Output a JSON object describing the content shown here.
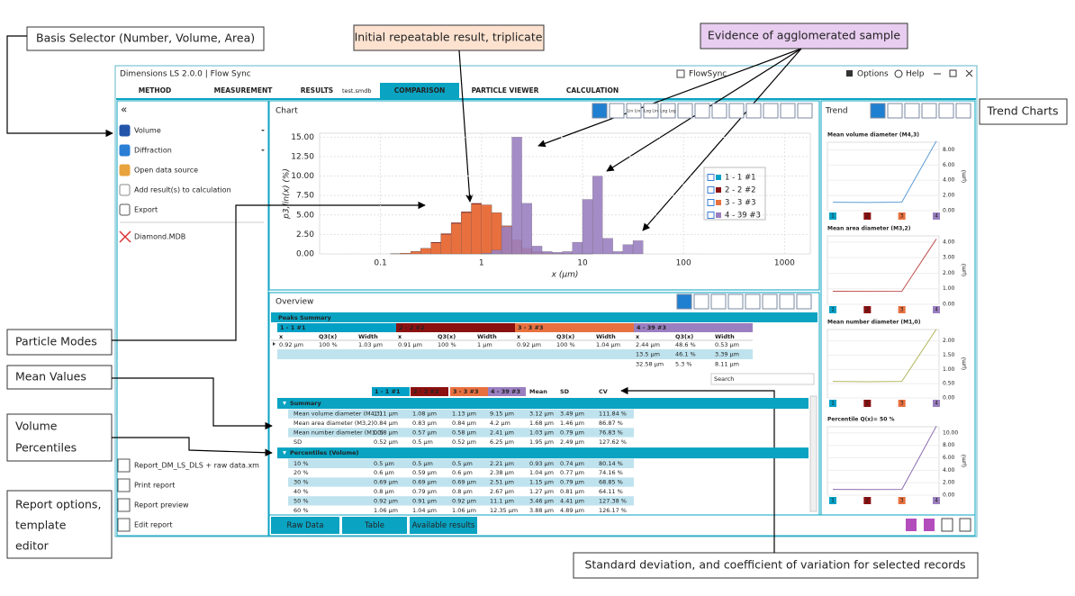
{
  "annotations": {
    "basis_selector": "Basis Selector (Number, Volume, Area)",
    "initial_result": "Initial repeatable result, triplicate",
    "agglomerated": "Evidence of agglomerated sample",
    "trend_charts": "Trend Charts",
    "particle_modes": "Particle Modes",
    "mean_values": "Mean Values",
    "volume_percentiles": [
      "Volume",
      "Percentiles"
    ],
    "report_options": [
      "Report options,",
      "template",
      "editor"
    ],
    "sd_cv": "Standard deviation, and coefficient of variation for selected records"
  },
  "app": {
    "title": "Dimensions LS  2.0.0  |  Flow Sync",
    "user": "FlowSync",
    "options": "Options",
    "help": "Help"
  },
  "menu": {
    "items": [
      "METHOD",
      "MEASUREMENT",
      "RESULTS",
      "COMPARISON",
      "PARTICLE VIEWER",
      "CALCULATION"
    ],
    "active": "COMPARISON",
    "results_file": "test.smdb"
  },
  "sidebar": {
    "collapse": "«",
    "items": [
      "Volume",
      "Diffraction",
      "Open data source",
      "Add result(s) to calculation",
      "Export",
      "Diamond.MDB"
    ],
    "reports": [
      "Report_DM_LS_DLS + raw data.xm",
      "Print report",
      "Report preview",
      "Edit report"
    ]
  },
  "chart": {
    "type": "histogram",
    "title": "Chart",
    "toolbar_labels": [
      "Lin Lin",
      "Log Lin",
      "Log Log"
    ],
    "x_label": "x (µm)",
    "y_label": "p3,lin(x) (%)",
    "x_scale": "log",
    "grid": true,
    "bins": [
      0.1,
      0.126,
      0.158,
      0.2,
      0.251,
      0.316,
      0.398,
      0.501,
      0.631,
      0.794,
      1,
      1.26,
      1.58,
      2,
      2.51,
      3.16,
      3.98,
      5.01,
      6.31,
      7.94,
      10,
      12.6,
      15.8,
      20,
      25.1,
      31.6,
      39.8,
      50.1
    ],
    "series": [
      {
        "name": "1 - 1 #1",
        "color": "#00a0c6",
        "values": [
          0,
          0.02,
          0.1,
          0.3,
          0.7,
          1.4,
          2.5,
          3.9,
          5.3,
          6.4,
          6.3,
          5.3,
          3.6,
          1.8,
          0.7,
          0.3,
          0.15,
          0.1,
          0.08,
          0.05,
          0.03,
          0,
          0,
          0,
          0,
          0,
          0
        ]
      },
      {
        "name": "2 - 2 #2",
        "color": "#8b1010",
        "values": [
          0,
          0.02,
          0.1,
          0.3,
          0.7,
          1.5,
          2.6,
          4.0,
          5.4,
          6.5,
          6.2,
          5.2,
          3.5,
          1.7,
          0.7,
          0.3,
          0.15,
          0.1,
          0.08,
          0.05,
          0.03,
          0,
          0,
          0,
          0,
          0,
          0
        ]
      },
      {
        "name": "3 - 3 #3",
        "color": "#e8703f",
        "values": [
          0,
          0.02,
          0.1,
          0.3,
          0.7,
          1.4,
          2.5,
          3.9,
          5.3,
          6.4,
          6.3,
          5.3,
          3.6,
          1.8,
          0.7,
          0.3,
          0.15,
          0.1,
          0.08,
          0.05,
          0.03,
          0,
          0,
          0,
          0,
          0,
          0
        ]
      },
      {
        "name": "4 - 39 #3",
        "color": "#9a7fc0",
        "values": [
          0,
          0,
          0,
          0,
          0,
          0,
          0,
          0,
          0,
          0,
          0.1,
          0.5,
          3.5,
          15,
          6.5,
          1,
          0.3,
          0.2,
          0.3,
          1.5,
          7,
          10,
          2,
          0.3,
          1.2,
          1.7,
          0
        ]
      }
    ],
    "xlim": [
      0.025,
      1800
    ],
    "xticks": [
      0.1,
      1,
      10,
      100,
      1000
    ],
    "ylim": [
      0,
      15.5
    ],
    "yticks": [
      {
        "value": 0,
        "label": "0.00"
      },
      {
        "value": 2.5,
        "label": "2.50"
      },
      {
        "value": 5,
        "label": "5.00"
      },
      {
        "value": 7.5,
        "label": "7.50"
      },
      {
        "value": 10,
        "label": "10.00"
      },
      {
        "value": 12.5,
        "label": "12.50"
      },
      {
        "value": 15,
        "label": "15.00"
      }
    ]
  },
  "overview": {
    "title": "Overview",
    "search": "Search",
    "peaks": {
      "title": "Peaks Summary",
      "columns": [
        "x",
        "Q3(x)",
        "Width"
      ],
      "rows": [
        [
          "0.92 µm",
          "100 %",
          "1.03 µm",
          "0.91 µm",
          "100 %",
          "1 µm",
          "0.92 µm",
          "100 %",
          "1.04 µm",
          "2.44 µm",
          "48.6 %",
          "0.53 µm"
        ]
      ],
      "last_group_rows": [
        [
          "13.5 µm",
          "46.1 %",
          "3.39 µm"
        ],
        [
          "32.58 µm",
          "5.3 %",
          "8.11 µm"
        ]
      ]
    },
    "results": {
      "stat_columns": [
        "Mean",
        "SD",
        "CV"
      ],
      "sections": [
        {
          "title": "Summary",
          "rows": [
            {
              "label": "Mean volume diameter (M4,3)",
              "cells": [
                "1.11 µm",
                "1.08 µm",
                "1.13 µm",
                "9.15 µm",
                "3.12 µm",
                "3.49 µm",
                "111.84 %"
              ]
            },
            {
              "label": "Mean area diameter (M3,2)",
              "cells": [
                "0.84 µm",
                "0.83 µm",
                "0.84 µm",
                "4.2 µm",
                "1.68 µm",
                "1.46 µm",
                "86.87 %"
              ]
            },
            {
              "label": "Mean number diameter (M1,0)",
              "cells": [
                "0.58 µm",
                "0.57 µm",
                "0.58 µm",
                "2.41 µm",
                "1.03 µm",
                "0.79 µm",
                "76.83 %"
              ]
            },
            {
              "label": "SD",
              "cells": [
                "0.52 µm",
                "0.5 µm",
                "0.52 µm",
                "6.25 µm",
                "1.95 µm",
                "2.49 µm",
                "127.62 %"
              ]
            }
          ]
        },
        {
          "title": "Percentiles (Volume)",
          "rows": [
            {
              "label": "10 %",
              "cells": [
                "0.5 µm",
                "0.5 µm",
                "0.5 µm",
                "2.21 µm",
                "0.93 µm",
                "0.74 µm",
                "80.14 %"
              ]
            },
            {
              "label": "20 %",
              "cells": [
                "0.6 µm",
                "0.59 µm",
                "0.6 µm",
                "2.38 µm",
                "1.04 µm",
                "0.77 µm",
                "74.16 %"
              ]
            },
            {
              "label": "30 %",
              "cells": [
                "0.69 µm",
                "0.69 µm",
                "0.69 µm",
                "2.51 µm",
                "1.15 µm",
                "0.79 µm",
                "68.85 %"
              ]
            },
            {
              "label": "40 %",
              "cells": [
                "0.8 µm",
                "0.79 µm",
                "0.8 µm",
                "2.67 µm",
                "1.27 µm",
                "0.81 µm",
                "64.11 %"
              ]
            },
            {
              "label": "50 %",
              "cells": [
                "0.92 µm",
                "0.91 µm",
                "0.92 µm",
                "11.1 µm",
                "3.46 µm",
                "4.41 µm",
                "127.38 %"
              ]
            },
            {
              "label": "60 %",
              "cells": [
                "1.06 µm",
                "1.04 µm",
                "1.06 µm",
                "12.35 µm",
                "3.88 µm",
                "4.89 µm",
                "126.17 %"
              ]
            }
          ]
        }
      ]
    }
  },
  "tabs": [
    "Raw Data",
    "Table",
    "Available results"
  ],
  "trend": {
    "title": "Trend",
    "y_unit": "(µm)",
    "categories": [
      "1",
      "2",
      "3",
      "4"
    ],
    "charts": [
      {
        "title": "Mean volume diameter (M4,3)",
        "color": "#5b9bd5",
        "values": [
          1.11,
          1.08,
          1.13,
          9.15
        ],
        "ylim": [
          0,
          9
        ],
        "yticks": [
          {
            "value": 0,
            "label": "0.00"
          },
          {
            "value": 2,
            "label": "2.00"
          },
          {
            "value": 4,
            "label": "4.00"
          },
          {
            "value": 6,
            "label": "6.00"
          },
          {
            "value": 8,
            "label": "8.00"
          }
        ]
      },
      {
        "title": "Mean area diameter (M3,2)",
        "color": "#c0504d",
        "values": [
          0.84,
          0.83,
          0.84,
          4.2
        ],
        "ylim": [
          0,
          4.4
        ],
        "yticks": [
          {
            "value": 0,
            "label": "0.00"
          },
          {
            "value": 1,
            "label": "1.00"
          },
          {
            "value": 2,
            "label": "2.00"
          },
          {
            "value": 3,
            "label": "3.00"
          },
          {
            "value": 4,
            "label": "4.00"
          }
        ]
      },
      {
        "title": "Mean number diameter (M1,0)",
        "color": "#b5b560",
        "values": [
          0.58,
          0.57,
          0.58,
          2.41
        ],
        "ylim": [
          0,
          2.4
        ],
        "yticks": [
          {
            "value": 0,
            "label": "0.00"
          },
          {
            "value": 0.5,
            "label": "0.50"
          },
          {
            "value": 1,
            "label": "1.00"
          },
          {
            "value": 1.5,
            "label": "1.50"
          },
          {
            "value": 2,
            "label": "2.00"
          }
        ]
      },
      {
        "title": "Percentile Q(x)= 50 %",
        "color": "#8a6aae",
        "values": [
          0.92,
          0.91,
          0.92,
          11.1
        ],
        "ylim": [
          0,
          11
        ],
        "yticks": [
          {
            "value": 0,
            "label": "0.00"
          },
          {
            "value": 2,
            "label": "2.00"
          },
          {
            "value": 4,
            "label": "4.00"
          },
          {
            "value": 6,
            "label": "6.00"
          },
          {
            "value": 8,
            "label": "8.00"
          },
          {
            "value": 10,
            "label": "10.00"
          }
        ]
      }
    ]
  }
}
